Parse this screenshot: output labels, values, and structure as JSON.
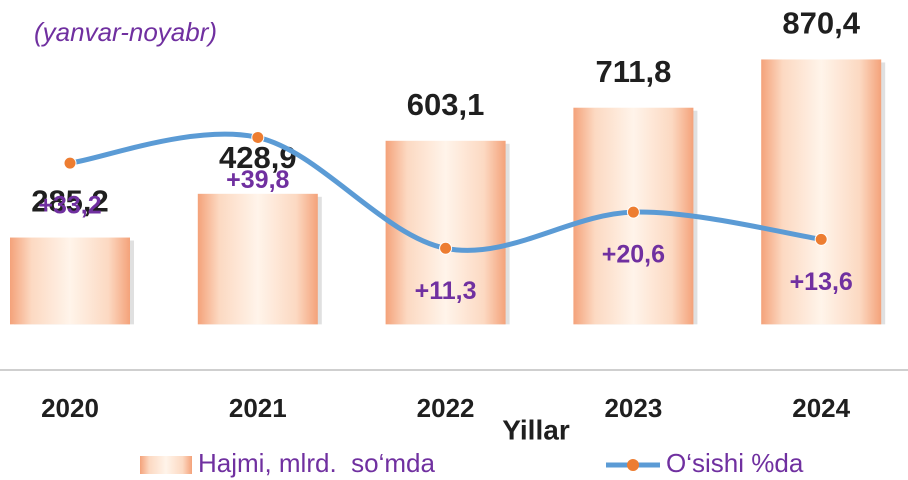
{
  "chart_data": {
    "type": "bar",
    "subtitle": "(yanvar-noyabr)",
    "x_label": "Yillar",
    "categories": [
      "2020",
      "2021",
      "2022",
      "2023",
      "2024"
    ],
    "series": [
      {
        "name": "Hajmi, mlrd.  so‘mda",
        "type": "bar",
        "color": "#f4a27a",
        "values": [
          285.2,
          428.9,
          603.1,
          711.8,
          870.4
        ],
        "value_labels": [
          "285,2",
          "428,9",
          "603,1",
          "711,8",
          "870,4"
        ]
      },
      {
        "name": "O‘sishi %da",
        "type": "line",
        "axis": "y2",
        "color": "#5b9bd5",
        "marker_color": "#ed7d31",
        "values": [
          33.2,
          39.8,
          11.3,
          20.6,
          13.6
        ],
        "value_labels": [
          "+33,2",
          "+39,8",
          "+11,3",
          "+20,6",
          "+13,6"
        ]
      }
    ],
    "ylim": [
      -150,
      1000
    ],
    "y2lim": [
      -20,
      70
    ],
    "legend": "bottom"
  }
}
